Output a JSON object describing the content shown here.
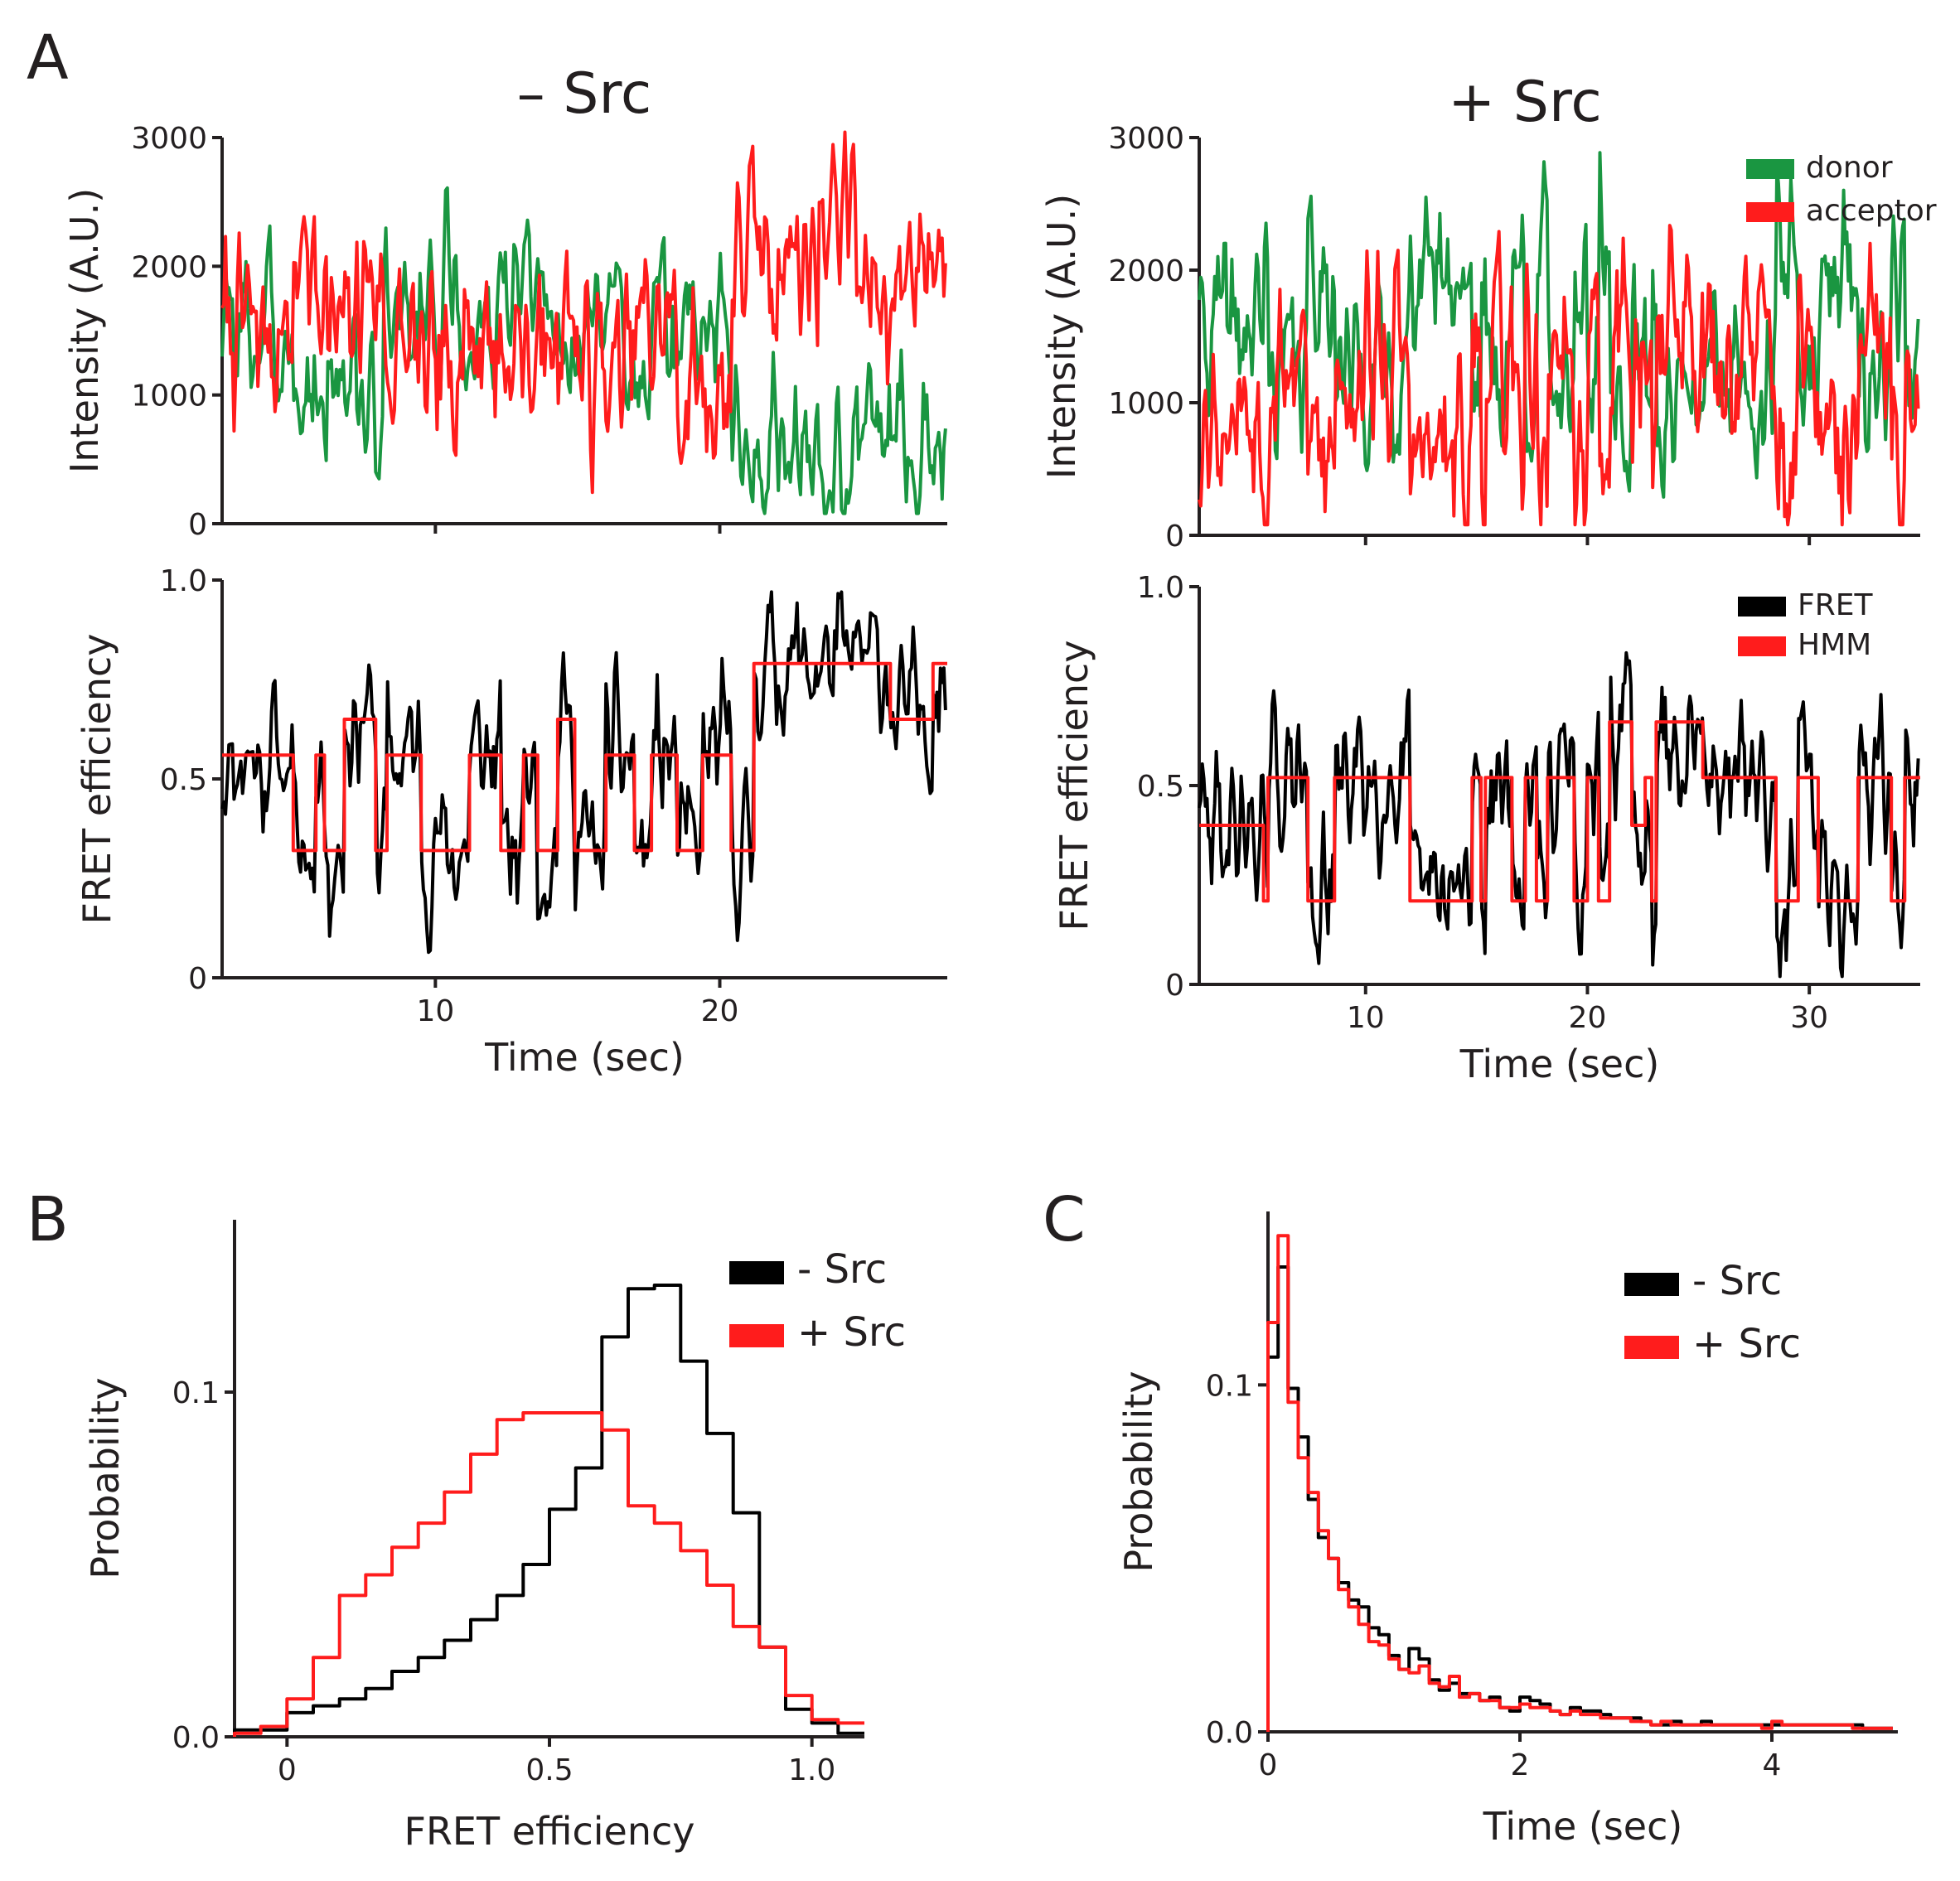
{
  "panels": {
    "A": "A",
    "B": "B",
    "C": "C"
  },
  "conditions": {
    "minus": "– Src",
    "plus": "+ Src"
  },
  "colors": {
    "donor": "#1a9641",
    "acceptor": "#ff1c1c",
    "fret": "#000000",
    "hmm": "#ff1c1c",
    "axis": "#231f20"
  },
  "chart_data": [
    {
      "id": "A-minus-intensity",
      "type": "line",
      "title": "– Src",
      "xlabel": "",
      "ylabel": "Intensity (A.U.)",
      "xlim": [
        2.5,
        28
      ],
      "ylim": [
        0,
        3000
      ],
      "xticks": [
        10,
        20
      ],
      "yticks": [
        0,
        1000,
        2000,
        3000
      ],
      "ytick_labels": [
        "0",
        "1000",
        "2000",
        "3000"
      ],
      "series": [
        {
          "name": "donor",
          "color": "#1a9641",
          "x_range": [
            2.5,
            28
          ],
          "step": 0.06,
          "baseline_segments": [
            [
              2.5,
              5.0,
              1500
            ],
            [
              5.0,
              6.2,
              950
            ],
            [
              6.2,
              7.2,
              1200
            ],
            [
              7.2,
              8.2,
              900
            ],
            [
              8.2,
              9.4,
              1500
            ],
            [
              9.4,
              10.5,
              1800
            ],
            [
              10.5,
              12.0,
              1450
            ],
            [
              12.0,
              14.2,
              1650
            ],
            [
              14.2,
              15.0,
              1300
            ],
            [
              15.0,
              17.0,
              1550
            ],
            [
              17.0,
              18.5,
              1400
            ],
            [
              18.5,
              20.4,
              1550
            ],
            [
              20.4,
              23.5,
              650
            ],
            [
              23.5,
              24.8,
              350
            ],
            [
              24.8,
              26.5,
              800
            ],
            [
              26.5,
              28,
              550
            ]
          ]
        },
        {
          "name": "acceptor",
          "color": "#ff1c1c",
          "x_range": [
            2.5,
            28
          ],
          "step": 0.06,
          "baseline_segments": [
            [
              2.5,
              5.0,
              1500
            ],
            [
              5.0,
              6.2,
              2000
            ],
            [
              6.2,
              7.2,
              1400
            ],
            [
              7.2,
              8.2,
              1900
            ],
            [
              8.2,
              9.4,
              1300
            ],
            [
              9.4,
              10.5,
              1000
            ],
            [
              10.5,
              12.0,
              1550
            ],
            [
              12.0,
              14.2,
              1350
            ],
            [
              14.2,
              15.0,
              1700
            ],
            [
              15.0,
              17.0,
              1150
            ],
            [
              17.0,
              18.5,
              1500
            ],
            [
              18.5,
              20.4,
              1050
            ],
            [
              20.4,
              23.5,
              2100
            ],
            [
              23.5,
              24.8,
              2500
            ],
            [
              24.8,
              26.5,
              1800
            ],
            [
              26.5,
              28,
              2150
            ]
          ]
        }
      ]
    },
    {
      "id": "A-minus-fret",
      "type": "line",
      "xlabel": "Time (sec)",
      "ylabel": "FRET efficiency",
      "xlim": [
        2.5,
        28
      ],
      "ylim": [
        0,
        1.0
      ],
      "xticks": [
        10,
        20
      ],
      "xtick_labels": [
        "10",
        "20"
      ],
      "yticks": [
        0,
        0.5,
        1.0
      ],
      "ytick_labels": [
        "0",
        "0.5",
        "1.0"
      ],
      "series": [
        {
          "name": "FRET",
          "color": "#000000",
          "x_range": [
            2.5,
            28
          ],
          "step": 0.06,
          "follows": "HMM"
        },
        {
          "name": "HMM",
          "color": "#ff1c1c",
          "steps": [
            [
              2.5,
              5.0,
              0.56
            ],
            [
              5.0,
              5.8,
              0.32
            ],
            [
              5.8,
              6.1,
              0.56
            ],
            [
              6.1,
              6.8,
              0.32
            ],
            [
              6.8,
              7.9,
              0.65
            ],
            [
              7.9,
              8.3,
              0.32
            ],
            [
              8.3,
              9.5,
              0.56
            ],
            [
              9.5,
              11.2,
              0.32
            ],
            [
              11.2,
              12.3,
              0.56
            ],
            [
              12.3,
              13.1,
              0.32
            ],
            [
              13.1,
              13.6,
              0.56
            ],
            [
              13.6,
              14.3,
              0.32
            ],
            [
              14.3,
              14.9,
              0.65
            ],
            [
              14.9,
              16.0,
              0.32
            ],
            [
              16.0,
              17.0,
              0.56
            ],
            [
              17.0,
              17.6,
              0.32
            ],
            [
              17.6,
              18.5,
              0.56
            ],
            [
              18.5,
              19.4,
              0.32
            ],
            [
              19.4,
              20.4,
              0.56
            ],
            [
              20.4,
              21.2,
              0.32
            ],
            [
              21.2,
              26.0,
              0.79
            ],
            [
              26.0,
              27.5,
              0.65
            ],
            [
              27.5,
              28,
              0.79
            ]
          ]
        }
      ]
    },
    {
      "id": "A-plus-intensity",
      "type": "line",
      "title": "+ Src",
      "xlabel": "",
      "ylabel": "Intensity (A.U.)",
      "xlim": [
        2.5,
        35
      ],
      "ylim": [
        0,
        3000
      ],
      "xticks": [
        10,
        20,
        30
      ],
      "yticks": [
        0,
        1000,
        2000,
        3000
      ],
      "ytick_labels": [
        "0",
        "1000",
        "2000",
        "3000"
      ],
      "legend": [
        "donor",
        "acceptor"
      ],
      "series": [
        {
          "name": "donor",
          "color": "#1a9641",
          "x_range": [
            2.5,
            35
          ],
          "step": 0.07,
          "follows": "B-HMM",
          "fret_ref": "A-plus-fret",
          "mode": "donor"
        },
        {
          "name": "acceptor",
          "color": "#ff1c1c",
          "x_range": [
            2.5,
            35
          ],
          "step": 0.07,
          "follows": "B-HMM",
          "fret_ref": "A-plus-fret",
          "mode": "acceptor"
        }
      ]
    },
    {
      "id": "A-plus-fret",
      "type": "line",
      "xlabel": "Time (sec)",
      "ylabel": "FRET efficiency",
      "xlim": [
        2.5,
        35
      ],
      "ylim": [
        0,
        1.0
      ],
      "xticks": [
        10,
        20,
        30
      ],
      "xtick_labels": [
        "10",
        "20",
        "30"
      ],
      "yticks": [
        0,
        0.5,
        1.0
      ],
      "ytick_labels": [
        "0",
        "0.5",
        "1.0"
      ],
      "legend": [
        "FRET",
        "HMM"
      ],
      "series": [
        {
          "name": "FRET",
          "color": "#000000",
          "x_range": [
            2.5,
            35
          ],
          "step": 0.07,
          "follows": "HMM"
        },
        {
          "name": "HMM",
          "color": "#ff1c1c",
          "steps": [
            [
              2.5,
              5.4,
              0.4
            ],
            [
              5.4,
              5.6,
              0.21
            ],
            [
              5.6,
              7.4,
              0.52
            ],
            [
              7.4,
              8.6,
              0.21
            ],
            [
              8.6,
              12.0,
              0.52
            ],
            [
              12.0,
              14.8,
              0.21
            ],
            [
              14.8,
              15.2,
              0.52
            ],
            [
              15.2,
              15.4,
              0.21
            ],
            [
              15.4,
              16.6,
              0.52
            ],
            [
              16.6,
              17.2,
              0.21
            ],
            [
              17.2,
              17.7,
              0.52
            ],
            [
              17.7,
              18.2,
              0.21
            ],
            [
              18.2,
              19.4,
              0.52
            ],
            [
              19.4,
              20.0,
              0.21
            ],
            [
              20.0,
              20.5,
              0.52
            ],
            [
              20.5,
              21.0,
              0.21
            ],
            [
              21.0,
              22.0,
              0.66
            ],
            [
              22.0,
              22.6,
              0.4
            ],
            [
              22.6,
              22.9,
              0.52
            ],
            [
              22.9,
              23.1,
              0.21
            ],
            [
              23.1,
              25.2,
              0.66
            ],
            [
              25.2,
              28.5,
              0.52
            ],
            [
              28.5,
              29.5,
              0.21
            ],
            [
              29.5,
              30.4,
              0.52
            ],
            [
              30.4,
              32.2,
              0.21
            ],
            [
              32.2,
              33.7,
              0.52
            ],
            [
              33.7,
              34.3,
              0.21
            ],
            [
              34.3,
              35,
              0.52
            ]
          ]
        }
      ]
    },
    {
      "id": "B",
      "type": "line",
      "drawstyle": "steps",
      "xlabel": "FRET efficiency",
      "ylabel": "Probability",
      "xlim": [
        -0.1,
        1.1
      ],
      "ylim": [
        0,
        0.15
      ],
      "xticks": [
        0,
        0.5,
        1.0
      ],
      "xtick_labels": [
        "0",
        "0.5",
        "1.0"
      ],
      "yticks": [
        0,
        0.1
      ],
      "ytick_labels": [
        "0.0",
        "0.1"
      ],
      "legend": [
        "- Src",
        "+ Src"
      ],
      "bin_edges": [
        -0.1,
        -0.05,
        0.0,
        0.05,
        0.1,
        0.15,
        0.2,
        0.25,
        0.3,
        0.35,
        0.4,
        0.45,
        0.5,
        0.55,
        0.6,
        0.65,
        0.7,
        0.75,
        0.8,
        0.85,
        0.9,
        0.95,
        1.0,
        1.05,
        1.1
      ],
      "series": [
        {
          "name": "- Src",
          "color": "#000000",
          "values": [
            0.002,
            0.002,
            0.007,
            0.009,
            0.011,
            0.014,
            0.019,
            0.023,
            0.028,
            0.034,
            0.041,
            0.05,
            0.066,
            0.078,
            0.116,
            0.13,
            0.131,
            0.109,
            0.088,
            0.065,
            0.026,
            0.008,
            0.004,
            0.001
          ]
        },
        {
          "name": "+ Src",
          "color": "#ff1c1c",
          "values": [
            0.001,
            0.003,
            0.011,
            0.023,
            0.041,
            0.047,
            0.055,
            0.062,
            0.071,
            0.082,
            0.092,
            0.094,
            0.094,
            0.094,
            0.089,
            0.067,
            0.062,
            0.054,
            0.044,
            0.032,
            0.026,
            0.012,
            0.005,
            0.004
          ]
        }
      ]
    },
    {
      "id": "C",
      "type": "line",
      "drawstyle": "steps",
      "xlabel": "Time (sec)",
      "ylabel": "Probability",
      "xlim": [
        0,
        5
      ],
      "ylim": [
        0,
        0.15
      ],
      "xticks": [
        0,
        2,
        4
      ],
      "xtick_labels": [
        "0",
        "2",
        "4"
      ],
      "yticks": [
        0,
        0.1
      ],
      "ytick_labels": [
        "0.0",
        "0.1"
      ],
      "legend": [
        "- Src",
        "+ Src"
      ],
      "bin_width": 0.08,
      "series": [
        {
          "name": "- Src",
          "color": "#000000",
          "values": [
            0.108,
            0.134,
            0.099,
            0.085,
            0.067,
            0.056,
            0.05,
            0.043,
            0.038,
            0.036,
            0.03,
            0.028,
            0.022,
            0.018,
            0.024,
            0.021,
            0.015,
            0.012,
            0.014,
            0.011,
            0.011,
            0.009,
            0.01,
            0.007,
            0.006,
            0.01,
            0.009,
            0.008,
            0.006,
            0.005,
            0.007,
            0.006,
            0.006,
            0.005,
            0.004,
            0.004,
            0.004,
            0.003,
            0.002,
            0.002,
            0.003,
            0.002,
            0.002,
            0.003,
            0.002,
            0.002,
            0.002,
            0.002,
            0.002,
            0.002,
            0.002,
            0.002,
            0.002,
            0.002,
            0.002,
            0.002,
            0.002,
            0.002,
            0.002,
            0.001,
            0.001,
            0.001
          ]
        },
        {
          "name": "+ Src",
          "color": "#ff1c1c",
          "values": [
            0.118,
            0.143,
            0.095,
            0.079,
            0.069,
            0.058,
            0.05,
            0.041,
            0.036,
            0.031,
            0.026,
            0.025,
            0.021,
            0.018,
            0.017,
            0.019,
            0.014,
            0.013,
            0.016,
            0.01,
            0.011,
            0.009,
            0.009,
            0.007,
            0.007,
            0.008,
            0.007,
            0.007,
            0.006,
            0.005,
            0.006,
            0.005,
            0.005,
            0.004,
            0.004,
            0.004,
            0.003,
            0.003,
            0.002,
            0.003,
            0.002,
            0.002,
            0.002,
            0.002,
            0.002,
            0.002,
            0.002,
            0.002,
            0.002,
            0.001,
            0.003,
            0.002,
            0.002,
            0.002,
            0.002,
            0.002,
            0.002,
            0.002,
            0.001,
            0.001,
            0.001,
            0.001
          ]
        }
      ]
    }
  ]
}
